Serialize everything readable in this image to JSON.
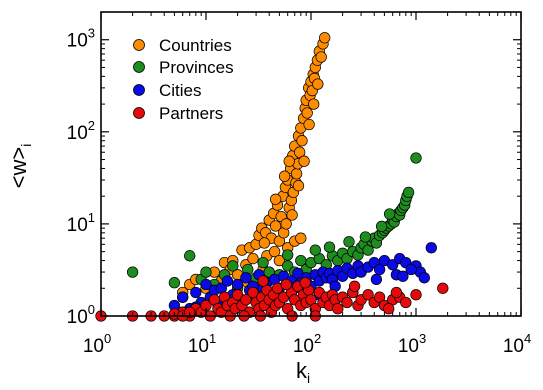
{
  "chart_data": {
    "type": "scatter",
    "xscale": "log",
    "yscale": "log",
    "xlim": [
      1,
      10000
    ],
    "ylim": [
      1,
      2000
    ],
    "grid": false,
    "legend_position": "top-left",
    "axis_labels": {
      "x": {
        "base": "k",
        "sub": "i"
      },
      "y": {
        "base": "<w>",
        "sub": "i"
      }
    },
    "x_ticks": [
      {
        "value": 1,
        "base": "10",
        "exp": "0"
      },
      {
        "value": 10,
        "base": "10",
        "exp": "1"
      },
      {
        "value": 100,
        "base": "10",
        "exp": "2"
      },
      {
        "value": 1000,
        "base": "10",
        "exp": "3"
      },
      {
        "value": 10000,
        "base": "10",
        "exp": "4"
      }
    ],
    "y_ticks": [
      {
        "value": 1,
        "base": "10",
        "exp": "0"
      },
      {
        "value": 10,
        "base": "10",
        "exp": "1"
      },
      {
        "value": 100,
        "base": "10",
        "exp": "2"
      },
      {
        "value": 1000,
        "base": "10",
        "exp": "3"
      }
    ],
    "series": [
      {
        "name": "Countries",
        "color": "#ff8c00",
        "points": [
          [
            6,
            1.8
          ],
          [
            7,
            2.2
          ],
          [
            8,
            2.5
          ],
          [
            10,
            2.0
          ],
          [
            12,
            3.0
          ],
          [
            14,
            2.4
          ],
          [
            15,
            3.8
          ],
          [
            17,
            3.2
          ],
          [
            18,
            4.0
          ],
          [
            20,
            2.8
          ],
          [
            22,
            5.2
          ],
          [
            24,
            3.6
          ],
          [
            26,
            5.5
          ],
          [
            28,
            4.2
          ],
          [
            30,
            6.0
          ],
          [
            32,
            7.5
          ],
          [
            34,
            9.0
          ],
          [
            35,
            3.2
          ],
          [
            37,
            8.0
          ],
          [
            38,
            4.5
          ],
          [
            40,
            11.0
          ],
          [
            42,
            7.0
          ],
          [
            44,
            13.0
          ],
          [
            45,
            5.0
          ],
          [
            46,
            9.5
          ],
          [
            48,
            16.0
          ],
          [
            50,
            6.5
          ],
          [
            52,
            12.0
          ],
          [
            54,
            20.0
          ],
          [
            55,
            8.0
          ],
          [
            57,
            25.0
          ],
          [
            58,
            10.0
          ],
          [
            60,
            30.0
          ],
          [
            62,
            15.0
          ],
          [
            64,
            40.0
          ],
          [
            65,
            18.0
          ],
          [
            67,
            55.0
          ],
          [
            68,
            22.0
          ],
          [
            70,
            70.0
          ],
          [
            72,
            28.0
          ],
          [
            73,
            35.0
          ],
          [
            75,
            45.0
          ],
          [
            76,
            90.0
          ],
          [
            78,
            60.0
          ],
          [
            80,
            110.0
          ],
          [
            82,
            80.0
          ],
          [
            85,
            140.0
          ],
          [
            88,
            180.0
          ],
          [
            90,
            220.0
          ],
          [
            92,
            160.0
          ],
          [
            95,
            300.0
          ],
          [
            98,
            250.0
          ],
          [
            100,
            350.0
          ],
          [
            103,
            280.0
          ],
          [
            105,
            420.0
          ],
          [
            108,
            380.0
          ],
          [
            110,
            500.0
          ],
          [
            115,
            600.0
          ],
          [
            120,
            750.0
          ],
          [
            125,
            650.0
          ],
          [
            130,
            900.0
          ],
          [
            135,
            1050.0
          ],
          [
            40,
            3.0
          ],
          [
            50,
            4.0
          ],
          [
            30,
            2.5
          ],
          [
            60,
            5.5
          ],
          [
            70,
            6.5
          ],
          [
            45,
            2.6
          ],
          [
            80,
            7.0
          ],
          [
            25,
            2.3
          ],
          [
            36,
            6.2
          ],
          [
            66,
            12.5
          ],
          [
            86,
            48.0
          ],
          [
            96,
            120.0
          ],
          [
            56,
            33.0
          ],
          [
            46,
            18.5
          ],
          [
            76,
            26.0
          ],
          [
            106,
            200.0
          ],
          [
            116,
            330.0
          ],
          [
            62,
            48.0
          ]
        ]
      },
      {
        "name": "Provinces",
        "color": "#1e8c1e",
        "points": [
          [
            2,
            3.0
          ],
          [
            5,
            2.3
          ],
          [
            6,
            1.6
          ],
          [
            7,
            4.5
          ],
          [
            9,
            2.5
          ],
          [
            10,
            3.0
          ],
          [
            12,
            2.2
          ],
          [
            15,
            2.8
          ],
          [
            18,
            3.5
          ],
          [
            20,
            2.0
          ],
          [
            25,
            3.2
          ],
          [
            30,
            2.6
          ],
          [
            35,
            3.8
          ],
          [
            40,
            3.0
          ],
          [
            50,
            2.8
          ],
          [
            60,
            3.5
          ],
          [
            70,
            3.0
          ],
          [
            80,
            4.0
          ],
          [
            90,
            3.2
          ],
          [
            100,
            3.8
          ],
          [
            120,
            4.2
          ],
          [
            140,
            3.6
          ],
          [
            160,
            4.5
          ],
          [
            180,
            4.0
          ],
          [
            200,
            4.8
          ],
          [
            220,
            4.2
          ],
          [
            250,
            5.0
          ],
          [
            280,
            4.6
          ],
          [
            300,
            5.5
          ],
          [
            320,
            6.0
          ],
          [
            350,
            5.2
          ],
          [
            380,
            6.5
          ],
          [
            400,
            7.0
          ],
          [
            420,
            6.2
          ],
          [
            450,
            7.5
          ],
          [
            480,
            8.0
          ],
          [
            500,
            8.5
          ],
          [
            520,
            9.0
          ],
          [
            550,
            9.5
          ],
          [
            580,
            10.0
          ],
          [
            600,
            11.0
          ],
          [
            620,
            10.5
          ],
          [
            650,
            12.0
          ],
          [
            680,
            13.0
          ],
          [
            700,
            12.5
          ],
          [
            720,
            14.0
          ],
          [
            750,
            15.0
          ],
          [
            780,
            16.0
          ],
          [
            800,
            18.0
          ],
          [
            820,
            20.0
          ],
          [
            850,
            22.0
          ],
          [
            1000,
            52.0
          ],
          [
            60,
            4.6
          ],
          [
            110,
            5.2
          ],
          [
            150,
            5.6
          ],
          [
            230,
            6.4
          ],
          [
            330,
            7.2
          ],
          [
            470,
            9.4
          ],
          [
            560,
            12.8
          ],
          [
            90,
            2.4
          ]
        ]
      },
      {
        "name": "Cities",
        "color": "#0a0ae6",
        "points": [
          [
            5,
            1.3
          ],
          [
            6,
            1.6
          ],
          [
            7,
            1.2
          ],
          [
            8,
            1.8
          ],
          [
            9,
            1.4
          ],
          [
            10,
            2.2
          ],
          [
            11,
            1.6
          ],
          [
            12,
            1.9
          ],
          [
            14,
            2.0
          ],
          [
            15,
            1.4
          ],
          [
            16,
            2.4
          ],
          [
            18,
            1.7
          ],
          [
            20,
            2.2
          ],
          [
            22,
            1.5
          ],
          [
            24,
            2.6
          ],
          [
            26,
            1.9
          ],
          [
            28,
            2.1
          ],
          [
            30,
            1.6
          ],
          [
            32,
            2.8
          ],
          [
            35,
            2.0
          ],
          [
            38,
            2.3
          ],
          [
            40,
            1.8
          ],
          [
            45,
            2.5
          ],
          [
            50,
            2.0
          ],
          [
            55,
            2.7
          ],
          [
            60,
            2.2
          ],
          [
            65,
            2.4
          ],
          [
            70,
            2.0
          ],
          [
            75,
            2.9
          ],
          [
            80,
            2.3
          ],
          [
            90,
            2.6
          ],
          [
            100,
            2.1
          ],
          [
            110,
            2.8
          ],
          [
            120,
            2.4
          ],
          [
            130,
            3.0
          ],
          [
            140,
            2.6
          ],
          [
            150,
            2.9
          ],
          [
            160,
            2.5
          ],
          [
            180,
            3.1
          ],
          [
            200,
            2.7
          ],
          [
            220,
            3.3
          ],
          [
            250,
            2.9
          ],
          [
            280,
            3.5
          ],
          [
            300,
            3.0
          ],
          [
            350,
            3.4
          ],
          [
            400,
            3.8
          ],
          [
            450,
            3.2
          ],
          [
            500,
            4.0
          ],
          [
            600,
            3.6
          ],
          [
            700,
            4.2
          ],
          [
            800,
            3.8
          ],
          [
            1000,
            3.5
          ],
          [
            1400,
            5.5
          ],
          [
            1100,
            3.0
          ],
          [
            1200,
            2.6
          ],
          [
            900,
            3.2
          ],
          [
            650,
            2.8
          ],
          [
            250,
            1.8
          ],
          [
            120,
            1.7
          ],
          [
            45,
            1.5
          ],
          [
            18,
            1.5
          ],
          [
            8,
            1.25
          ],
          [
            13,
            1.3
          ],
          [
            33,
            1.6
          ],
          [
            85,
            1.9
          ],
          [
            170,
            2.1
          ],
          [
            420,
            2.5
          ],
          [
            750,
            2.7
          ]
        ]
      },
      {
        "name": "Partners",
        "color": "#e60a0a",
        "points": [
          [
            1,
            1.0
          ],
          [
            2,
            1.0
          ],
          [
            3,
            1.0
          ],
          [
            4,
            1.0
          ],
          [
            5,
            1.0
          ],
          [
            6,
            1.1
          ],
          [
            7,
            1.0
          ],
          [
            8,
            1.2
          ],
          [
            9,
            1.1
          ],
          [
            10,
            1.3
          ],
          [
            11,
            1.0
          ],
          [
            12,
            1.5
          ],
          [
            13,
            1.2
          ],
          [
            14,
            1.1
          ],
          [
            15,
            1.6
          ],
          [
            16,
            1.3
          ],
          [
            17,
            1.0
          ],
          [
            18,
            1.4
          ],
          [
            19,
            1.2
          ],
          [
            20,
            1.7
          ],
          [
            22,
            1.3
          ],
          [
            24,
            1.5
          ],
          [
            26,
            1.1
          ],
          [
            28,
            1.8
          ],
          [
            30,
            1.4
          ],
          [
            32,
            1.2
          ],
          [
            34,
            1.6
          ],
          [
            36,
            1.3
          ],
          [
            38,
            1.9
          ],
          [
            40,
            1.5
          ],
          [
            42,
            1.1
          ],
          [
            44,
            1.7
          ],
          [
            46,
            1.3
          ],
          [
            48,
            2.0
          ],
          [
            50,
            1.4
          ],
          [
            55,
            1.6
          ],
          [
            60,
            1.2
          ],
          [
            65,
            1.8
          ],
          [
            70,
            1.5
          ],
          [
            75,
            2.1
          ],
          [
            80,
            1.3
          ],
          [
            85,
            1.7
          ],
          [
            90,
            1.4
          ],
          [
            95,
            1.9
          ],
          [
            100,
            1.5
          ],
          [
            110,
            1.2
          ],
          [
            120,
            1.8
          ],
          [
            130,
            1.4
          ],
          [
            140,
            1.6
          ],
          [
            150,
            1.3
          ],
          [
            160,
            1.7
          ],
          [
            170,
            1.5
          ],
          [
            180,
            1.2
          ],
          [
            200,
            1.6
          ],
          [
            220,
            1.4
          ],
          [
            250,
            1.8
          ],
          [
            280,
            1.3
          ],
          [
            300,
            1.5
          ],
          [
            350,
            1.7
          ],
          [
            400,
            1.4
          ],
          [
            450,
            1.6
          ],
          [
            500,
            1.3
          ],
          [
            600,
            1.5
          ],
          [
            700,
            1.6
          ],
          [
            800,
            1.4
          ],
          [
            1000,
            1.7
          ],
          [
            1800,
            2.0
          ],
          [
            650,
            1.8
          ],
          [
            550,
            1.2
          ],
          [
            23,
            1.0
          ],
          [
            33,
            1.0
          ],
          [
            66,
            1.0
          ],
          [
            110,
            1.0
          ],
          [
            5,
            1.05
          ],
          [
            6,
            1.0
          ],
          [
            7,
            1.1
          ],
          [
            35,
            2.4
          ],
          [
            58,
            2.2
          ],
          [
            88,
            2.3
          ],
          [
            260,
            2.1
          ]
        ]
      }
    ]
  }
}
